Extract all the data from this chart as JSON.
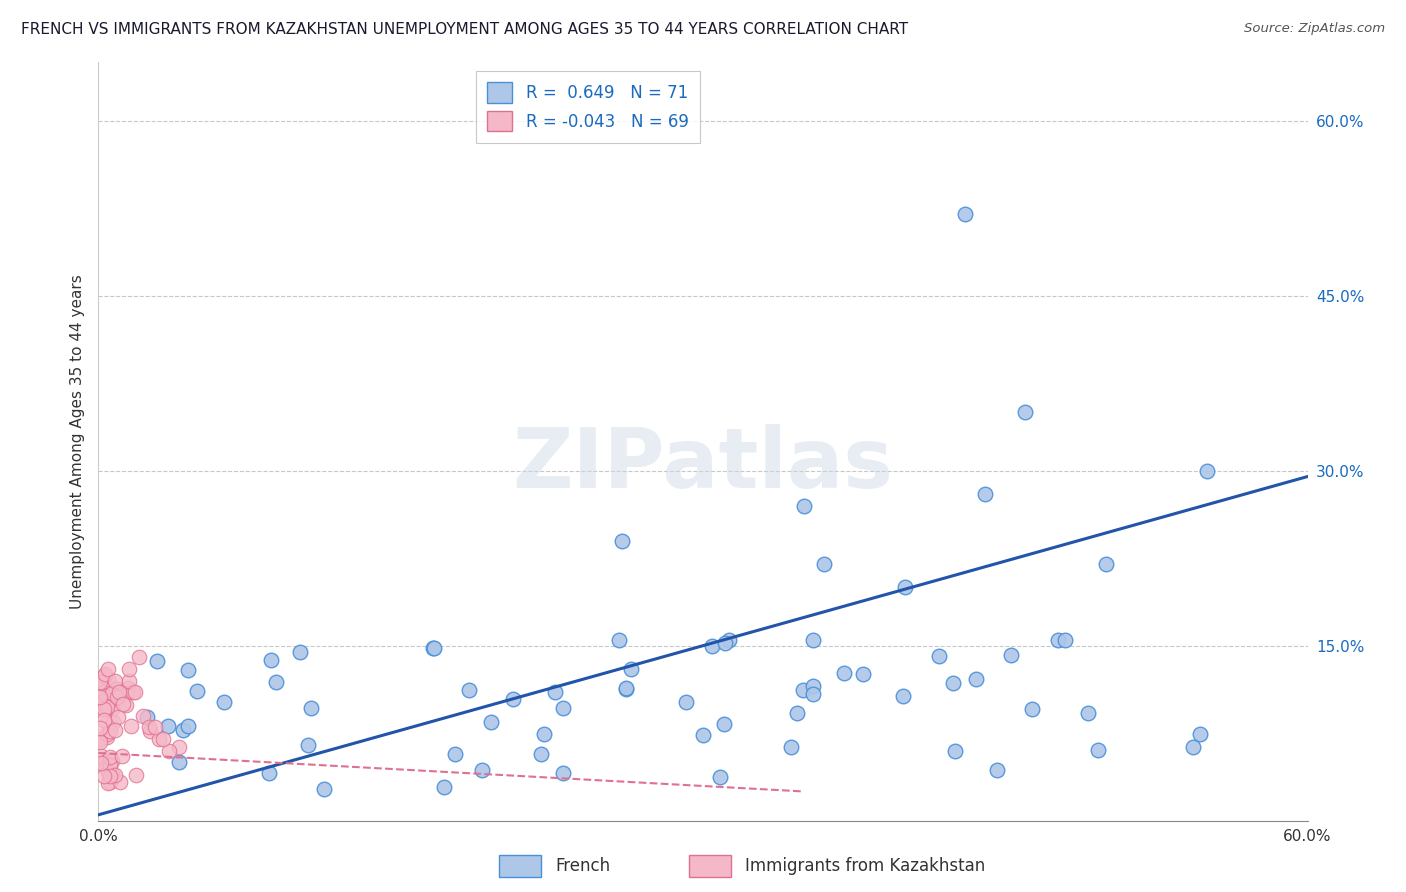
{
  "title": "FRENCH VS IMMIGRANTS FROM KAZAKHSTAN UNEMPLOYMENT AMONG AGES 35 TO 44 YEARS CORRELATION CHART",
  "source": "Source: ZipAtlas.com",
  "ylabel": "Unemployment Among Ages 35 to 44 years",
  "xlim": [
    0.0,
    0.6
  ],
  "ylim": [
    0.0,
    0.65
  ],
  "y_tick_vals_right": [
    0.0,
    0.15,
    0.3,
    0.45,
    0.6
  ],
  "y_tick_labels_right": [
    "",
    "15.0%",
    "30.0%",
    "45.0%",
    "60.0%"
  ],
  "grid_color": "#c8c8c8",
  "background_color": "#ffffff",
  "french_color": "#aec6e8",
  "french_edge_color": "#4a90d9",
  "french_line_color": "#2255aa",
  "kazakh_color": "#f5b8c8",
  "kazakh_edge_color": "#e07090",
  "kazakh_line_color": "#e07090",
  "legend_french_r": "0.649",
  "legend_french_n": "71",
  "legend_kazakh_r": "-0.043",
  "legend_kazakh_n": "69",
  "watermark": "ZIPatlas",
  "french_line_x0": 0.0,
  "french_line_y0": 0.005,
  "french_line_x1": 0.6,
  "french_line_y1": 0.295,
  "kazakh_line_x0": 0.0,
  "kazakh_line_y0": 0.058,
  "kazakh_line_x1": 0.35,
  "kazakh_line_y1": 0.025
}
